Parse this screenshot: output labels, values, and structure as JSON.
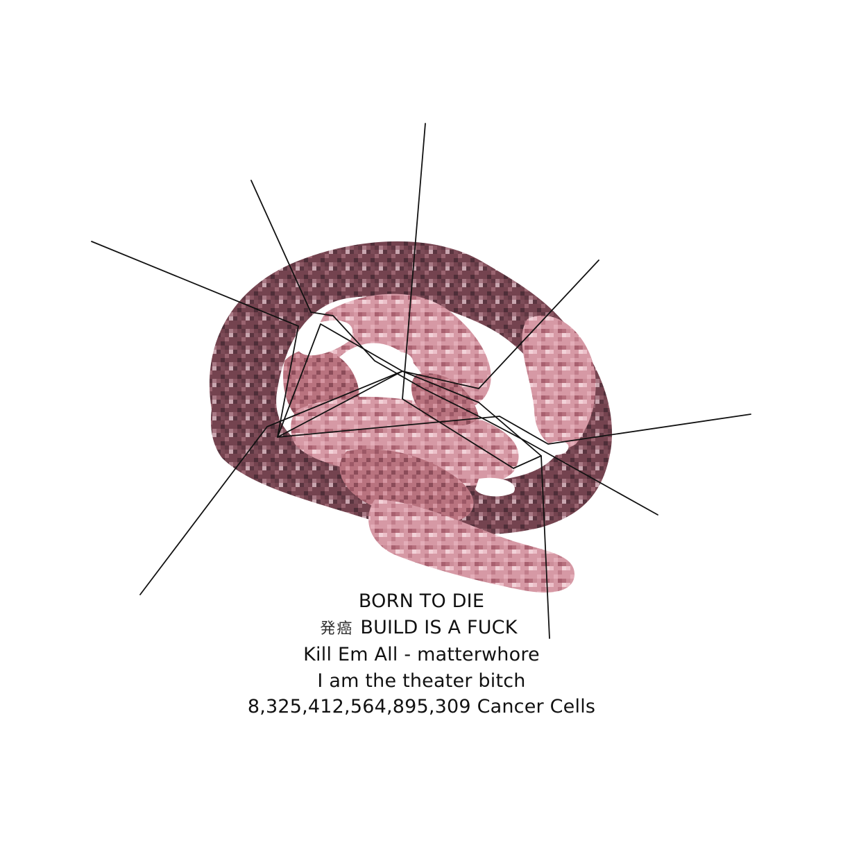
{
  "artwork": {
    "subject": "pixelated-knot-of-flesh",
    "colors": {
      "background": "#ffffff",
      "outer_ring_dark": "#6d3f4a",
      "outer_ring_mid": "#8a5560",
      "inner_coil_light": "#d99aa6",
      "inner_coil_highlight": "#eec3cb",
      "inner_coil_mid": "#c07c89",
      "shadow": "#4a2a33",
      "line": "#111111"
    }
  },
  "caption": {
    "line1": "BORN TO DIE",
    "line2_cjk": "発癌",
    "line2_text": "BUILD IS A FUCK",
    "line3": "Kill Em All - matterwhore",
    "line4": "I am the theater bitch",
    "line5": "8,325,412,564,895,309 Cancer Cells"
  }
}
